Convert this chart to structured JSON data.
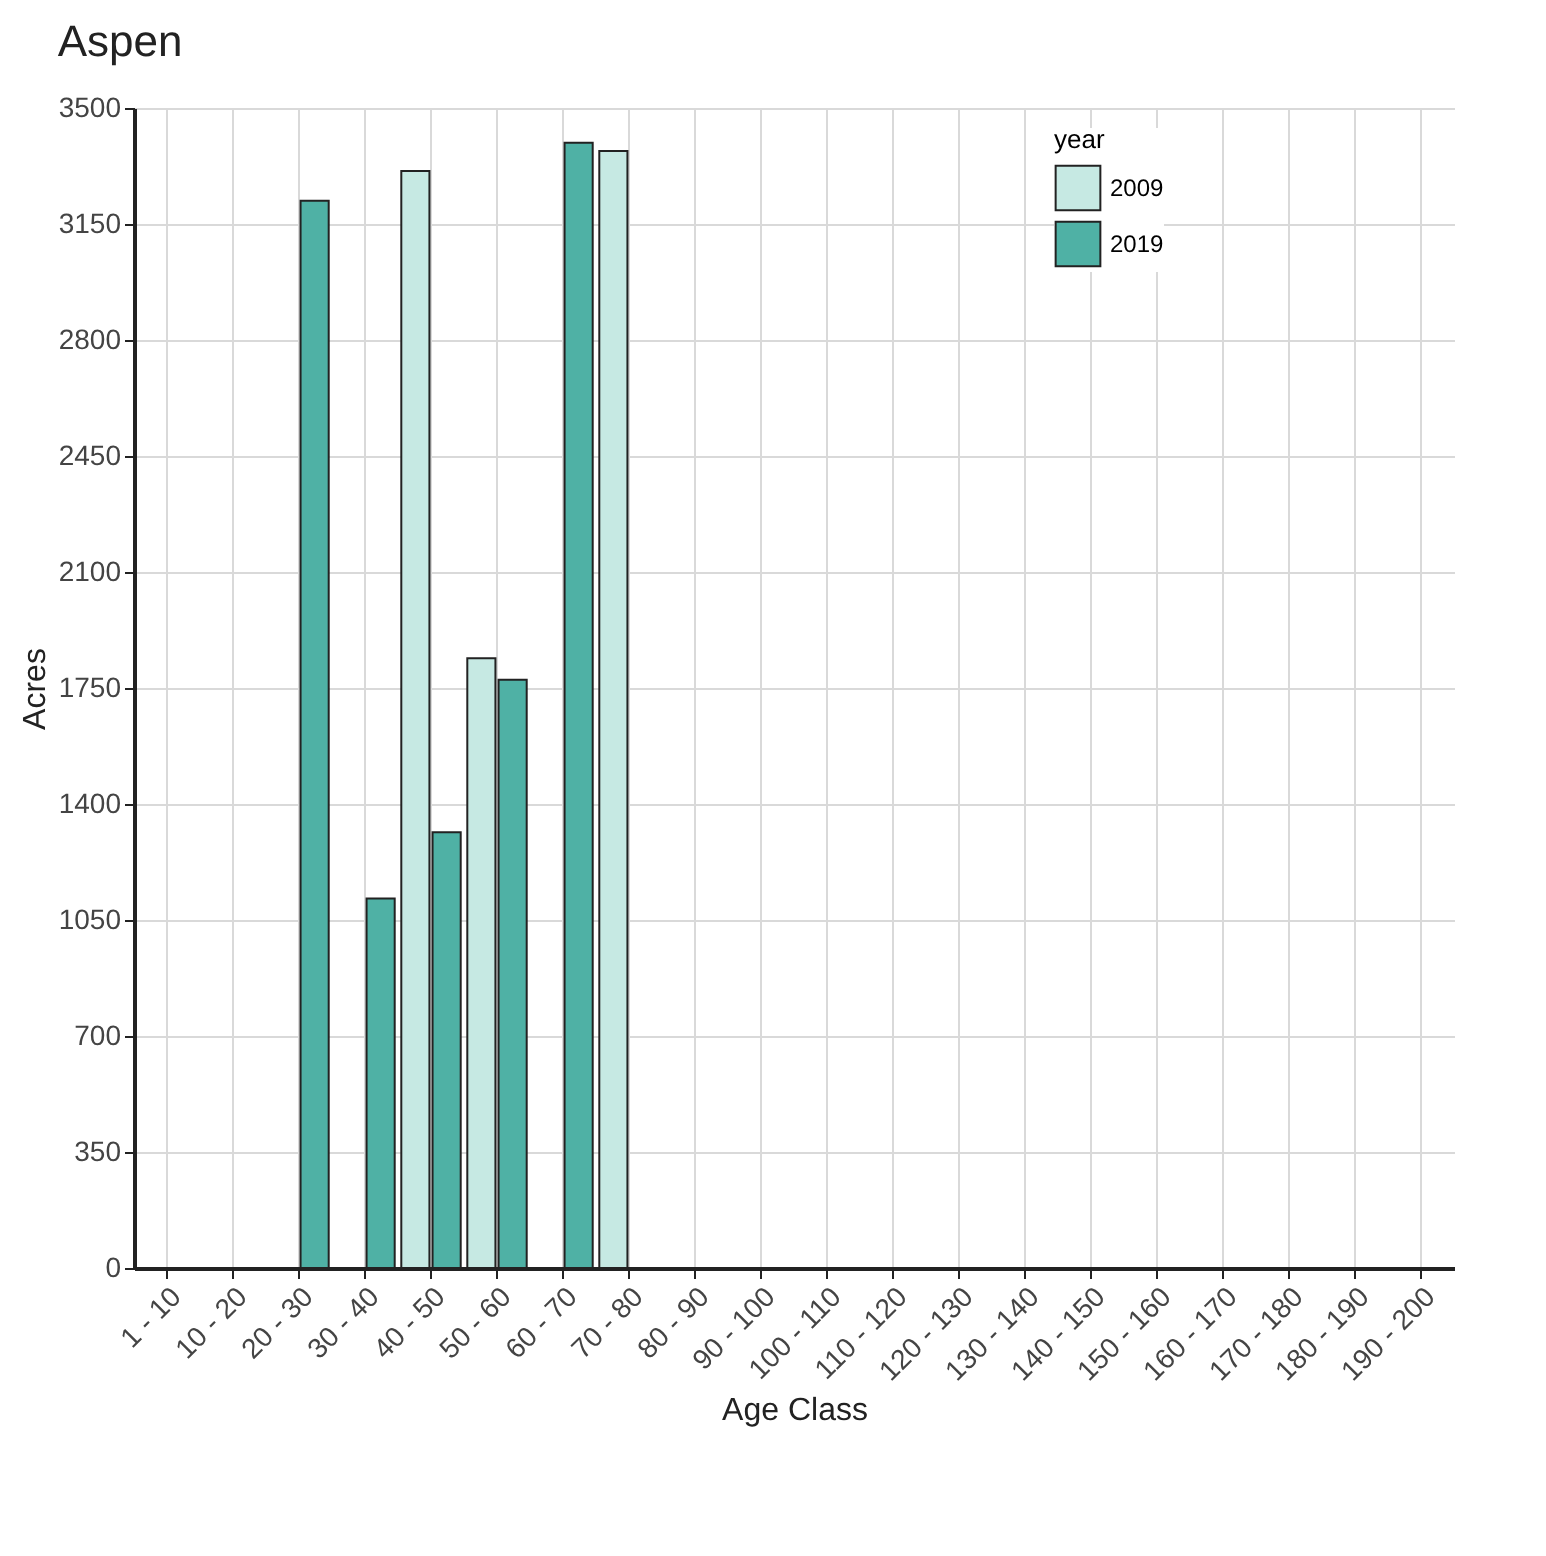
{
  "chart_data": {
    "type": "bar",
    "title": "Aspen",
    "xlabel": "Age Class",
    "ylabel": "Acres",
    "legend_title": "year",
    "categories": [
      "1 - 10",
      "10 - 20",
      "20 - 30",
      "30 - 40",
      "40 - 50",
      "50 - 60",
      "60 - 70",
      "70 - 80",
      "80 - 90",
      "90 - 100",
      "100 - 110",
      "110 - 120",
      "120 - 130",
      "130 - 140",
      "140 - 150",
      "150 - 160",
      "160 - 170",
      "170 - 180",
      "180 - 190",
      "190 - 200"
    ],
    "series": [
      {
        "name": "2009",
        "color": "#c6e9e3",
        "values": [
          null,
          null,
          null,
          null,
          3310,
          1840,
          null,
          3370,
          null,
          null,
          null,
          null,
          null,
          null,
          null,
          null,
          null,
          null,
          null,
          null
        ]
      },
      {
        "name": "2019",
        "color": "#4fb1a5",
        "values": [
          null,
          null,
          3220,
          1115,
          1315,
          1775,
          3395,
          null,
          null,
          null,
          null,
          null,
          null,
          null,
          null,
          null,
          null,
          null,
          null,
          null
        ]
      }
    ],
    "ylim": [
      0,
      3500
    ],
    "yticks": [
      0,
      350,
      700,
      1050,
      1400,
      1750,
      2100,
      2450,
      2800,
      3150,
      3500
    ],
    "grid": true,
    "legend": "top right"
  }
}
